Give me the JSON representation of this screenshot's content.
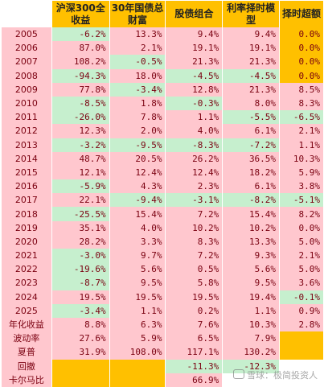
{
  "headers": {
    "year": "",
    "hs300": "沪深300全收益",
    "bond30y": "30年国债总财富",
    "stock_bond": "股债组合",
    "rate_timing": "利率择时模型",
    "timing_excess": "择时超额"
  },
  "rows": [
    {
      "year": "2005",
      "hs300": "-6.2%",
      "bond30y": "13.3%",
      "stock_bond": "9.4%",
      "rate_timing": "9.4%",
      "excess": "0.0%"
    },
    {
      "year": "2006",
      "hs300": "87.0%",
      "bond30y": "2.1%",
      "stock_bond": "19.1%",
      "rate_timing": "19.1%",
      "excess": "0.0%"
    },
    {
      "year": "2007",
      "hs300": "108.2%",
      "bond30y": "-0.5%",
      "stock_bond": "21.3%",
      "rate_timing": "21.3%",
      "excess": "0.0%"
    },
    {
      "year": "2008",
      "hs300": "-94.3%",
      "bond30y": "18.0%",
      "stock_bond": "-4.5%",
      "rate_timing": "-4.5%",
      "excess": "0.0%"
    },
    {
      "year": "2009",
      "hs300": "77.8%",
      "bond30y": "-3.4%",
      "stock_bond": "12.8%",
      "rate_timing": "21.3%",
      "excess": "8.5%"
    },
    {
      "year": "2010",
      "hs300": "-8.5%",
      "bond30y": "1.8%",
      "stock_bond": "-0.3%",
      "rate_timing": "8.0%",
      "excess": "8.3%"
    },
    {
      "year": "2011",
      "hs300": "-26.0%",
      "bond30y": "7.8%",
      "stock_bond": "1.1%",
      "rate_timing": "-5.5%",
      "excess": "-6.5%"
    },
    {
      "year": "2012",
      "hs300": "12.3%",
      "bond30y": "2.0%",
      "stock_bond": "4.0%",
      "rate_timing": "6.1%",
      "excess": "2.1%"
    },
    {
      "year": "2013",
      "hs300": "-3.2%",
      "bond30y": "-9.5%",
      "stock_bond": "-8.3%",
      "rate_timing": "-7.2%",
      "excess": "1.1%"
    },
    {
      "year": "2014",
      "hs300": "48.7%",
      "bond30y": "20.5%",
      "stock_bond": "26.2%",
      "rate_timing": "36.5%",
      "excess": "10.3%"
    },
    {
      "year": "2015",
      "hs300": "12.1%",
      "bond30y": "12.4%",
      "stock_bond": "12.4%",
      "rate_timing": "18.2%",
      "excess": "5.9%"
    },
    {
      "year": "2016",
      "hs300": "-5.9%",
      "bond30y": "4.3%",
      "stock_bond": "2.3%",
      "rate_timing": "6.1%",
      "excess": "3.8%"
    },
    {
      "year": "2017",
      "hs300": "22.1%",
      "bond30y": "-9.4%",
      "stock_bond": "-3.1%",
      "rate_timing": "-8.2%",
      "excess": "-5.1%"
    },
    {
      "year": "2018",
      "hs300": "-25.5%",
      "bond30y": "15.4%",
      "stock_bond": "7.2%",
      "rate_timing": "15.4%",
      "excess": "8.2%"
    },
    {
      "year": "2019",
      "hs300": "35.1%",
      "bond30y": "4.0%",
      "stock_bond": "10.2%",
      "rate_timing": "10.2%",
      "excess": "0.0%"
    },
    {
      "year": "2020",
      "hs300": "28.2%",
      "bond30y": "3.3%",
      "stock_bond": "8.3%",
      "rate_timing": "13.3%",
      "excess": "5.0%"
    },
    {
      "year": "2021",
      "hs300": "-3.0%",
      "bond30y": "9.7%",
      "stock_bond": "7.2%",
      "rate_timing": "9.3%",
      "excess": "2.1%"
    },
    {
      "year": "2022",
      "hs300": "-19.6%",
      "bond30y": "5.6%",
      "stock_bond": "0.5%",
      "rate_timing": "5.6%",
      "excess": "5.0%"
    },
    {
      "year": "2023",
      "hs300": "-8.7%",
      "bond30y": "9.5%",
      "stock_bond": "5.8%",
      "rate_timing": "9.5%",
      "excess": "3.6%"
    },
    {
      "year": "2024",
      "hs300": "19.5%",
      "bond30y": "19.5%",
      "stock_bond": "19.5%",
      "rate_timing": "19.4%",
      "excess": "-0.1%"
    },
    {
      "year": "2025",
      "hs300": "-3.4%",
      "bond30y": "1.1%",
      "stock_bond": "0.2%",
      "rate_timing": "1.1%",
      "excess": "0.9%"
    }
  ],
  "stats": {
    "annual_return": {
      "label": "年化收益",
      "hs300": "8.8%",
      "bond30y": "6.3%",
      "stock_bond": "7.6%",
      "rate_timing": "10.3%",
      "excess": "2.8%"
    },
    "volatility": {
      "label": "波动率",
      "hs300": "27.6%",
      "bond30y": "5.9%",
      "stock_bond": "6.5%",
      "rate_timing": "7.9%",
      "excess": ""
    },
    "sharpe": {
      "label": "夏普",
      "hs300": "31.9%",
      "bond30y": "108.0%",
      "stock_bond": "117.1%",
      "rate_timing": "130.2%",
      "excess": ""
    },
    "drawdown": {
      "label": "回撤",
      "hs300": "",
      "bond30y": "",
      "stock_bond": "-11.3%",
      "rate_timing": "-12.3%",
      "excess": ""
    },
    "calmar": {
      "label": "卡尔马比",
      "hs300": "",
      "bond30y": "",
      "stock_bond": "66.9%",
      "rate_timing": "",
      "excess": ""
    }
  },
  "watermark": "雪球：极简投资人",
  "colors": {
    "pink": "#ffc7ce",
    "green": "#c6efce",
    "orange": "#ffc000",
    "text": "#7a0010"
  }
}
